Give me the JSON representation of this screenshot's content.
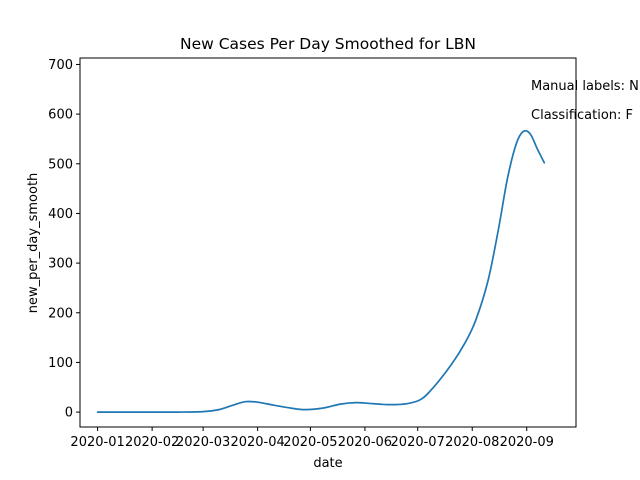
{
  "chart_data": {
    "type": "line",
    "title": "New Cases Per Day Smoothed for LBN",
    "xlabel": "date",
    "ylabel": "new_per_day_smooth",
    "x_ticks": [
      "2020-01",
      "2020-02",
      "2020-03",
      "2020-04",
      "2020-05",
      "2020-06",
      "2020-07",
      "2020-08",
      "2020-09"
    ],
    "y_ticks": [
      0,
      100,
      200,
      300,
      400,
      500,
      600,
      700
    ],
    "xlim": [
      "2019-12-22",
      "2020-09-29"
    ],
    "ylim": [
      -30,
      713
    ],
    "grid": false,
    "annotations": [
      "Manual labels: N",
      "Classification: F"
    ],
    "series": [
      {
        "color": "#1f77b4",
        "points": [
          [
            "2020-01-01",
            0
          ],
          [
            "2020-01-15",
            0
          ],
          [
            "2020-02-01",
            0
          ],
          [
            "2020-02-15",
            0
          ],
          [
            "2020-03-01",
            1
          ],
          [
            "2020-03-10",
            5
          ],
          [
            "2020-03-18",
            14
          ],
          [
            "2020-03-25",
            21
          ],
          [
            "2020-04-01",
            20
          ],
          [
            "2020-04-10",
            14
          ],
          [
            "2020-04-20",
            8
          ],
          [
            "2020-04-28",
            5
          ],
          [
            "2020-05-08",
            8
          ],
          [
            "2020-05-18",
            16
          ],
          [
            "2020-05-27",
            19
          ],
          [
            "2020-06-05",
            17
          ],
          [
            "2020-06-15",
            15
          ],
          [
            "2020-06-25",
            17
          ],
          [
            "2020-07-03",
            26
          ],
          [
            "2020-07-10",
            50
          ],
          [
            "2020-07-20",
            95
          ],
          [
            "2020-07-28",
            140
          ],
          [
            "2020-08-03",
            185
          ],
          [
            "2020-08-10",
            265
          ],
          [
            "2020-08-16",
            370
          ],
          [
            "2020-08-21",
            470
          ],
          [
            "2020-08-26",
            540
          ],
          [
            "2020-08-30",
            565
          ],
          [
            "2020-09-03",
            560
          ],
          [
            "2020-09-07",
            530
          ],
          [
            "2020-09-11",
            502
          ]
        ]
      }
    ]
  }
}
